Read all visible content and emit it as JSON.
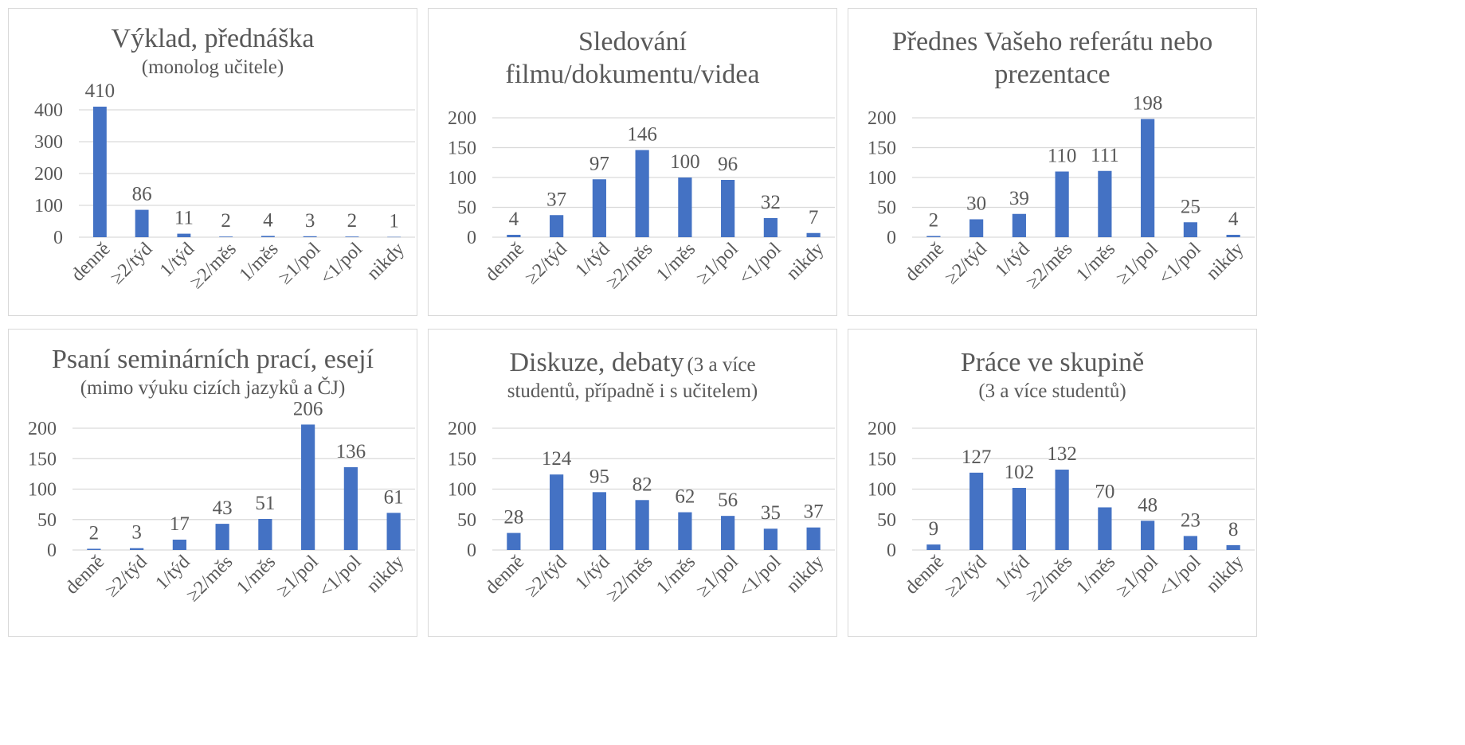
{
  "categories": [
    "denně",
    "≥2/týd",
    "1/týd",
    "≥2/měs",
    "1/měs",
    "≥1/pol",
    "<1/pol",
    "nikdy"
  ],
  "colors": {
    "bar": "#4472c4",
    "grid": "#d9d9d9",
    "text": "#595959",
    "border": "#d9d9d9"
  },
  "chart_data": [
    {
      "type": "bar",
      "title": "Výklad, přednáška",
      "subtitle": "(monolog učitele)",
      "values": [
        410,
        86,
        11,
        2,
        4,
        3,
        2,
        1
      ],
      "yticks": [
        "0",
        "100",
        "200",
        "300",
        "400"
      ],
      "ylim": [
        0,
        400
      ],
      "grid": true,
      "xlabel": "",
      "ylabel": ""
    },
    {
      "type": "bar",
      "title_line1": "Sledování",
      "title_line2": "filmu/dokumentu/videa",
      "values": [
        4,
        37,
        97,
        146,
        100,
        96,
        32,
        7
      ],
      "yticks": [
        "0",
        "50",
        "100",
        "150",
        "200"
      ],
      "ylim": [
        0,
        200
      ],
      "grid": true,
      "xlabel": "",
      "ylabel": ""
    },
    {
      "type": "bar",
      "title_line1": "Přednes Vašeho referátu nebo",
      "title_line2": "prezentace",
      "values": [
        2,
        30,
        39,
        110,
        111,
        198,
        25,
        4
      ],
      "yticks": [
        "0",
        "50",
        "100",
        "150",
        "200"
      ],
      "ylim": [
        0,
        200
      ],
      "grid": true,
      "xlabel": "",
      "ylabel": ""
    },
    {
      "type": "bar",
      "title": "Psaní seminárních prací, esejí",
      "subtitle": "(mimo výuku cizích jazyků a ČJ)",
      "values": [
        2,
        3,
        17,
        43,
        51,
        206,
        136,
        61
      ],
      "yticks": [
        "0",
        "50",
        "100",
        "150",
        "200"
      ],
      "ylim": [
        0,
        200
      ],
      "grid": true,
      "xlabel": "",
      "ylabel": ""
    },
    {
      "type": "bar",
      "title": "Diskuze, debaty",
      "title_note": "(3 a více",
      "subtitle": "studentů, případně i s učitelem)",
      "values": [
        28,
        124,
        95,
        82,
        62,
        56,
        35,
        37
      ],
      "yticks": [
        "0",
        "50",
        "100",
        "150",
        "200"
      ],
      "ylim": [
        0,
        200
      ],
      "grid": true,
      "xlabel": "",
      "ylabel": ""
    },
    {
      "type": "bar",
      "title": "Práce ve skupině",
      "subtitle": "(3 a více studentů)",
      "values": [
        9,
        127,
        102,
        132,
        70,
        48,
        23,
        8
      ],
      "yticks": [
        "0",
        "50",
        "100",
        "150",
        "200"
      ],
      "ylim": [
        0,
        200
      ],
      "grid": true,
      "xlabel": "",
      "ylabel": ""
    }
  ]
}
